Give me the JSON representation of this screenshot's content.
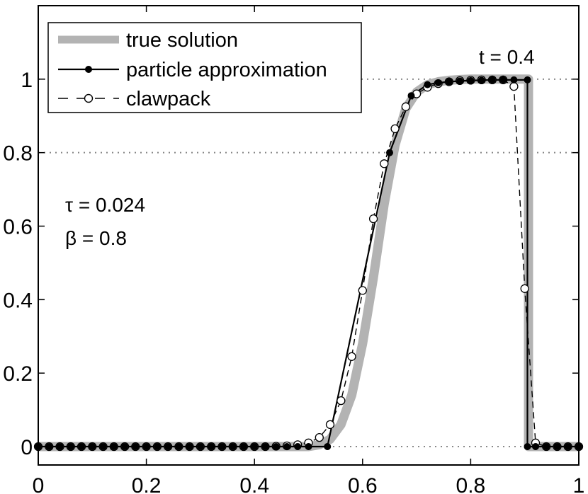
{
  "chart_data": {
    "type": "line",
    "xlim": [
      0,
      1
    ],
    "ylim": [
      -0.05,
      1.2
    ],
    "xticks": [
      {
        "value": 0,
        "label": "0"
      },
      {
        "value": 0.2,
        "label": "0.2"
      },
      {
        "value": 0.4,
        "label": "0.4"
      },
      {
        "value": 0.6,
        "label": "0.6"
      },
      {
        "value": 0.8,
        "label": "0.8"
      },
      {
        "value": 1,
        "label": "1"
      }
    ],
    "yticks": [
      {
        "value": 0,
        "label": "0"
      },
      {
        "value": 0.2,
        "label": "0.2"
      },
      {
        "value": 0.4,
        "label": "0.4"
      },
      {
        "value": 0.6,
        "label": "0.6"
      },
      {
        "value": 0.8,
        "label": "0.8"
      },
      {
        "value": 1,
        "label": "1"
      }
    ],
    "reference_lines": [
      0,
      0.8,
      1
    ],
    "legend": {
      "position": "top-left",
      "entries": [
        "true solution",
        "particle approximation",
        "clawpack"
      ]
    },
    "annotations": {
      "time": "t = 0.4",
      "tau": "τ = 0.024",
      "beta": "β = 0.8"
    },
    "series": [
      {
        "name": "true solution",
        "color": "#b3b3b3",
        "style": "thick-solid",
        "x": [
          0,
          0.5,
          0.52,
          0.54,
          0.56,
          0.58,
          0.6,
          0.62,
          0.64,
          0.66,
          0.68,
          0.7,
          0.72,
          0.74,
          0.76,
          0.78,
          0.8,
          0.85,
          0.907,
          0.907,
          1
        ],
        "y": [
          0,
          0,
          0.005,
          0.02,
          0.06,
          0.14,
          0.28,
          0.46,
          0.66,
          0.82,
          0.92,
          0.965,
          0.985,
          0.993,
          0.997,
          0.999,
          1.0,
          1.0,
          1.0,
          0,
          0
        ]
      },
      {
        "name": "particle approximation",
        "color": "#000000",
        "style": "solid-filled-markers",
        "x": [
          0,
          0.02,
          0.04,
          0.06,
          0.08,
          0.1,
          0.12,
          0.14,
          0.16,
          0.18,
          0.2,
          0.22,
          0.24,
          0.26,
          0.28,
          0.3,
          0.32,
          0.34,
          0.36,
          0.38,
          0.4,
          0.42,
          0.44,
          0.46,
          0.48,
          0.5,
          0.535,
          0.65,
          0.69,
          0.72,
          0.74,
          0.76,
          0.78,
          0.8,
          0.82,
          0.84,
          0.86,
          0.88,
          0.905,
          0.905,
          0.92,
          0.94,
          0.96,
          0.98,
          1.0
        ],
        "y": [
          0,
          0,
          0,
          0,
          0,
          0,
          0,
          0,
          0,
          0,
          0,
          0,
          0,
          0,
          0,
          0,
          0,
          0,
          0,
          0,
          0,
          0,
          0,
          0,
          0,
          0,
          0,
          0.8,
          0.955,
          0.985,
          0.99,
          0.993,
          0.995,
          0.996,
          0.997,
          0.998,
          0.998,
          0.998,
          0.998,
          0,
          0,
          0,
          0,
          0,
          0
        ]
      },
      {
        "name": "clawpack",
        "color": "#000000",
        "style": "dashed-open-markers",
        "x": [
          0,
          0.02,
          0.04,
          0.06,
          0.08,
          0.1,
          0.12,
          0.14,
          0.16,
          0.18,
          0.2,
          0.22,
          0.24,
          0.26,
          0.28,
          0.3,
          0.32,
          0.34,
          0.36,
          0.38,
          0.4,
          0.42,
          0.44,
          0.46,
          0.48,
          0.5,
          0.52,
          0.54,
          0.56,
          0.58,
          0.6,
          0.62,
          0.64,
          0.66,
          0.68,
          0.7,
          0.72,
          0.74,
          0.76,
          0.78,
          0.8,
          0.82,
          0.84,
          0.86,
          0.88,
          0.9,
          0.92,
          0.94,
          0.96,
          0.98,
          1.0
        ],
        "y": [
          0,
          0,
          0,
          0,
          0,
          0,
          0,
          0,
          0,
          0,
          0,
          0,
          0,
          0,
          0,
          0,
          0,
          0,
          0,
          0,
          0,
          0,
          0.001,
          0.002,
          0.005,
          0.01,
          0.025,
          0.06,
          0.125,
          0.245,
          0.425,
          0.62,
          0.77,
          0.865,
          0.925,
          0.96,
          0.978,
          0.988,
          0.993,
          0.996,
          0.997,
          0.998,
          0.998,
          0.998,
          0.98,
          0.43,
          0.01,
          0,
          0,
          0,
          0
        ]
      }
    ]
  }
}
